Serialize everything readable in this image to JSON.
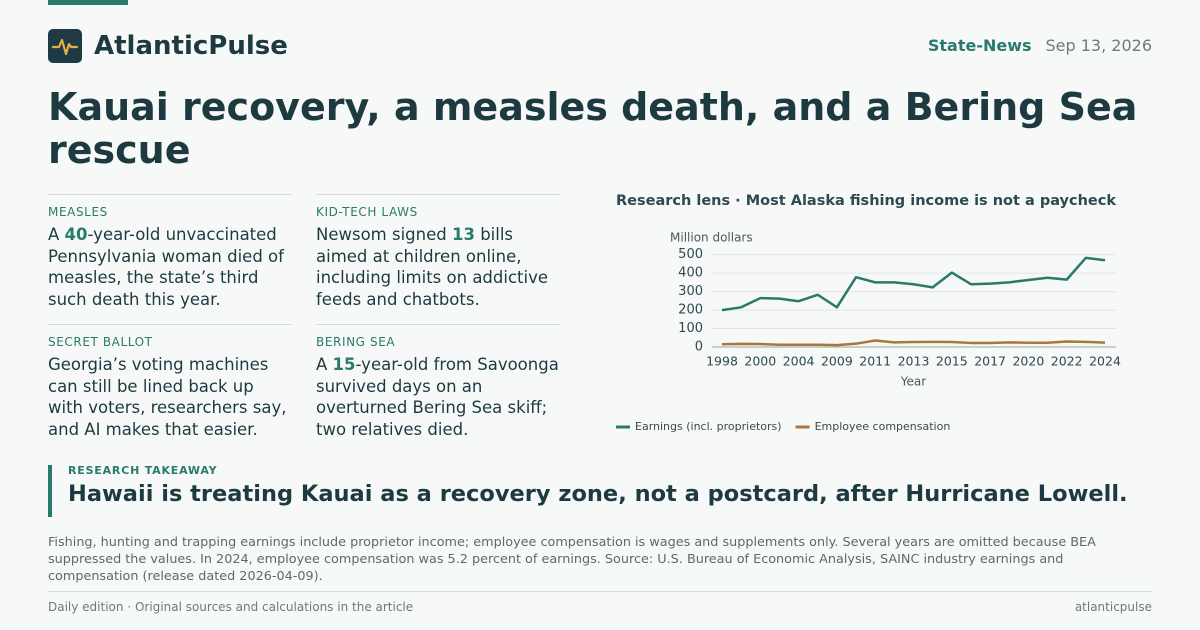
{
  "header": {
    "brand": "AtlanticPulse",
    "section": "State-News",
    "date": "Sep 13, 2026"
  },
  "headline": "Kauai recovery, a measles death, and a Bering Sea rescue",
  "briefs": [
    {
      "label": "MEASLES",
      "before": "A ",
      "highlight": "40",
      "after": "-year-old unvaccinated Pennsylvania woman died of measles, the state’s third such death this year."
    },
    {
      "label": "KID-TECH LAWS",
      "before": "Newsom signed ",
      "highlight": "13",
      "after": " bills aimed at children online, including limits on addictive feeds and chatbots."
    },
    {
      "label": "SECRET BALLOT",
      "before": "Georgia’s voting machines can still be lined back up with voters, researchers say, and AI makes that easier."
    },
    {
      "label": "BERING SEA",
      "before": "A ",
      "highlight": "15",
      "after": "-year-old from Savoonga survived days on an overturned Bering Sea skiff; two relatives died."
    }
  ],
  "chart_data": {
    "type": "line",
    "title": "Research lens · Most Alaska fishing income is not a paycheck",
    "y_label": "Million dollars",
    "x_label": "Year",
    "categories": [
      "1998",
      null,
      "2000",
      null,
      "2004",
      null,
      "2009",
      null,
      "2011",
      null,
      "2013",
      null,
      "2015",
      null,
      "2017",
      null,
      "2020",
      null,
      "2022",
      null,
      "2024"
    ],
    "series": [
      {
        "name": "Earnings (incl. proprietors)",
        "color": "#2a7a6c",
        "values": [
          200,
          215,
          265,
          262,
          248,
          283,
          215,
          378,
          350,
          350,
          340,
          323,
          403,
          340,
          343,
          350,
          363,
          375,
          365,
          483,
          470
        ]
      },
      {
        "name": "Employee compensation",
        "color": "#a8783a",
        "values": [
          15,
          17,
          16,
          12,
          12,
          12,
          10,
          18,
          35,
          25,
          27,
          28,
          27,
          22,
          22,
          25,
          23,
          23,
          30,
          28,
          24
        ]
      }
    ],
    "ylim": [
      0,
      520
    ],
    "yticks": [
      0,
      100,
      200,
      300,
      400,
      500
    ],
    "grid": true,
    "legend": "bottom"
  },
  "takeaway": {
    "label": "RESEARCH TAKEAWAY",
    "text": "Hawaii is treating Kauai as a recovery zone, not a postcard, after Hurricane Lowell."
  },
  "note": "Fishing, hunting and trapping earnings include proprietor income; employee compensation is wages and supplements only. Several years are omitted because BEA suppressed the values. In 2024, employee compensation was 5.2 percent of earnings. Source: U.S. Bureau of Economic Analysis, SAINC industry earnings and compensation (release dated 2026-04-09).",
  "footer": {
    "left": "Daily edition · Original sources and calculations in the article",
    "right": "atlanticpulse"
  }
}
